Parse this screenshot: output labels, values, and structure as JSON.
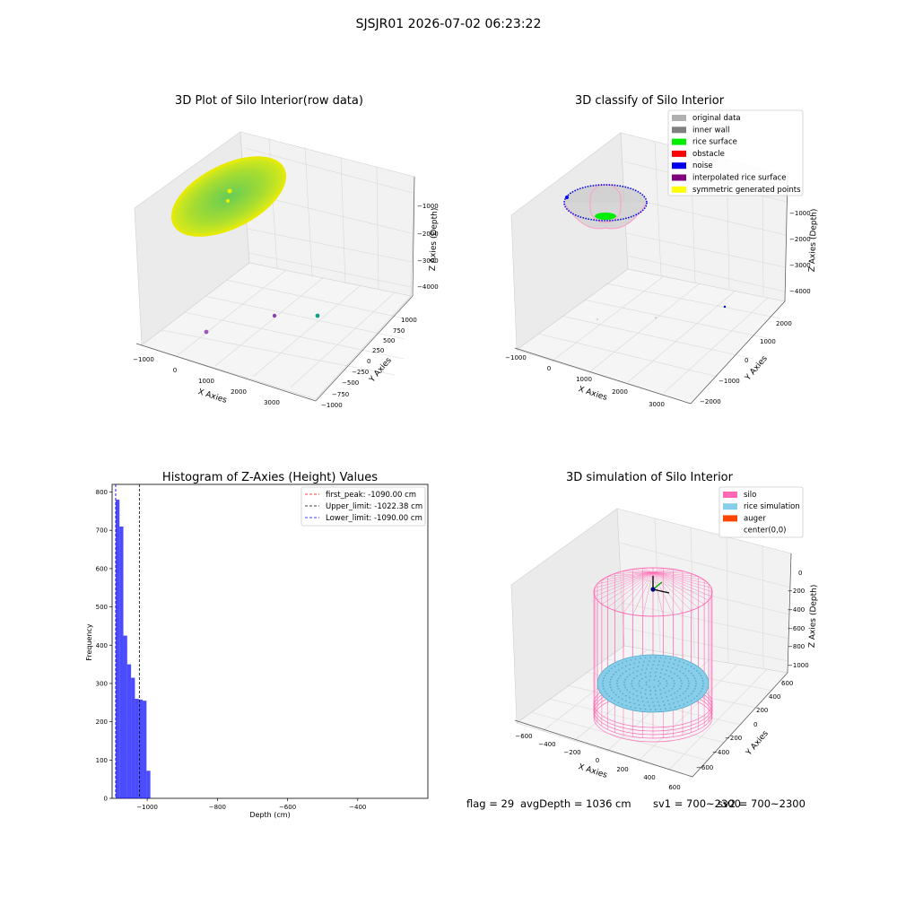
{
  "suptitle": "SJSJR01 2026-07-02 06:23:22",
  "status": {
    "flag": "flag = 29",
    "avg_depth": "avgDepth = 1036 cm",
    "sv1": "sv1 = 700~2300",
    "sv2": "sv2 = 700~2300"
  },
  "panel1": {
    "title": "3D Plot of Silo Interior(row data)",
    "xlabel": "X Axies",
    "ylabel": "Y Axies",
    "zlabel": "Z Axies (Depth)",
    "x_ticks": [
      "−1000",
      "0",
      "1000",
      "2000",
      "3000"
    ],
    "y_ticks": [
      "−1000",
      "−750",
      "−500",
      "−250",
      "0",
      "250",
      "500",
      "750",
      "1000"
    ],
    "z_ticks": [
      "−1000",
      "−2000",
      "−3000",
      "−4000"
    ]
  },
  "panel2": {
    "title": "3D classify of Silo Interior",
    "xlabel": "X Axies",
    "ylabel": "Y Axies",
    "zlabel": "Z Axies (Depth)",
    "x_ticks": [
      "−1000",
      "0",
      "1000",
      "2000",
      "3000"
    ],
    "y_ticks": [
      "−2000",
      "−1000",
      "0",
      "1000",
      "2000"
    ],
    "z_ticks": [
      "−1000",
      "−2000",
      "−3000",
      "−4000"
    ],
    "legend": [
      {
        "label": "original data",
        "color": "#b0b0b0"
      },
      {
        "label": "inner wall",
        "color": "#808080"
      },
      {
        "label": "rice surface",
        "color": "#00ee00"
      },
      {
        "label": "obstacle",
        "color": "#ff0000"
      },
      {
        "label": "noise",
        "color": "#0000ee"
      },
      {
        "label": "interpolated rice surface",
        "color": "#800080"
      },
      {
        "label": "symmetric generated points",
        "color": "#ffff00"
      }
    ]
  },
  "panel4": {
    "title": "3D simulation of Silo Interior",
    "xlabel": "X Axies",
    "ylabel": "Y Axies",
    "zlabel": "Z Axies (Depth)",
    "x_ticks": [
      "−600",
      "−400",
      "−200",
      "0",
      "200",
      "400",
      "600"
    ],
    "y_ticks": [
      "−600",
      "−400",
      "−200",
      "0",
      "200",
      "400",
      "600"
    ],
    "z_ticks": [
      "0",
      "−200",
      "−400",
      "−600",
      "−800",
      "−1000"
    ],
    "legend": [
      {
        "label": "silo",
        "color": "#ff69b4"
      },
      {
        "label": "rice simulation",
        "color": "#87ceeb"
      },
      {
        "label": "auger",
        "color": "#ff4500"
      },
      {
        "label": "center(0,0)",
        "color": "#ffffff"
      }
    ]
  },
  "chart_data": {
    "type": "bar",
    "title": "Histogram of Z-Axies (Height) Values",
    "xlabel": "Depth (cm)",
    "ylabel": "Frequency",
    "xlim": [
      -1100,
      -200
    ],
    "ylim": [
      0,
      820
    ],
    "x_ticks": [
      -1000,
      -800,
      -600,
      -400
    ],
    "y_ticks": [
      0,
      100,
      200,
      300,
      400,
      500,
      600,
      700,
      800
    ],
    "bar_color": "#0000ff",
    "bins": [
      {
        "left": -1090,
        "right": -1079,
        "value": 780
      },
      {
        "left": -1079,
        "right": -1068,
        "value": 710
      },
      {
        "left": -1068,
        "right": -1057,
        "value": 425
      },
      {
        "left": -1057,
        "right": -1046,
        "value": 350
      },
      {
        "left": -1046,
        "right": -1035,
        "value": 315
      },
      {
        "left": -1035,
        "right": -1024,
        "value": 260
      },
      {
        "left": -1024,
        "right": -1013,
        "value": 258
      },
      {
        "left": -1013,
        "right": -1002,
        "value": 255
      },
      {
        "left": -1002,
        "right": -991,
        "value": 72
      }
    ],
    "lines": [
      {
        "label": "first_peak: -1090.00 cm",
        "x": -1090,
        "color": "#ff0000"
      },
      {
        "label": "Upper_limit: -1022.38 cm",
        "x": -1022.38,
        "color": "#000000"
      },
      {
        "label": "Lower_limit: -1090.00 cm",
        "x": -1090,
        "color": "#0000ff"
      }
    ],
    "legend_position": "top-right"
  }
}
